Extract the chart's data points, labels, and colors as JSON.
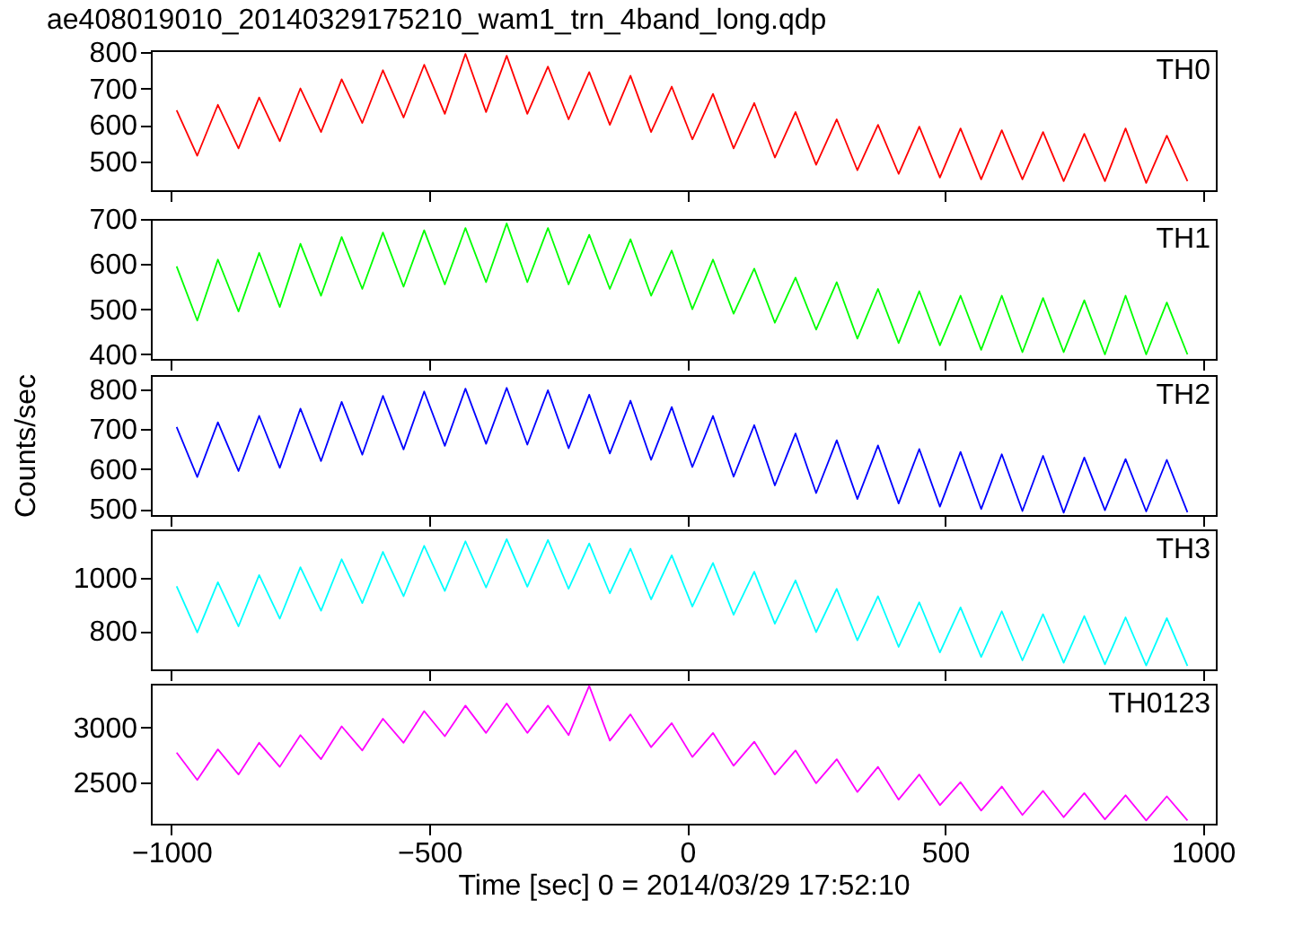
{
  "chart_data": [
    {
      "type": "line",
      "title": "ae408019010_20140329175210_wam1_trn_4band_long.qdp",
      "tick_labels": "y",
      "xlim": [
        -1040,
        1025
      ],
      "xticks": [
        -1000,
        -500,
        0,
        500,
        1000
      ],
      "ylim": [
        420,
        805
      ],
      "yticks": [
        500,
        600,
        700,
        800
      ],
      "x": [
        -990,
        -950,
        -910,
        -870,
        -830,
        -790,
        -750,
        -710,
        -670,
        -630,
        -590,
        -550,
        -510,
        -470,
        -430,
        -390,
        -350,
        -310,
        -270,
        -230,
        -190,
        -150,
        -110,
        -70,
        -30,
        10,
        50,
        90,
        130,
        170,
        210,
        250,
        290,
        330,
        370,
        410,
        450,
        490,
        530,
        570,
        610,
        650,
        690,
        730,
        770,
        810,
        850,
        890,
        930,
        970
      ],
      "series": [
        {
          "name": "TH0",
          "color": "#ff0000",
          "values": [
            640,
            515,
            655,
            535,
            675,
            555,
            700,
            580,
            725,
            605,
            750,
            620,
            765,
            630,
            795,
            635,
            790,
            630,
            760,
            615,
            745,
            600,
            735,
            580,
            705,
            560,
            685,
            535,
            660,
            510,
            635,
            490,
            615,
            475,
            600,
            465,
            595,
            455,
            590,
            450,
            585,
            450,
            580,
            445,
            575,
            445,
            590,
            440,
            570,
            445
          ]
        }
      ]
    },
    {
      "type": "line",
      "tick_labels": "y",
      "xlim": [
        -1040,
        1025
      ],
      "xticks": [
        -1000,
        -500,
        0,
        500,
        1000
      ],
      "ylim": [
        390,
        700
      ],
      "yticks": [
        400,
        500,
        600,
        700
      ],
      "x": [
        -990,
        -950,
        -910,
        -870,
        -830,
        -790,
        -750,
        -710,
        -670,
        -630,
        -590,
        -550,
        -510,
        -470,
        -430,
        -390,
        -350,
        -310,
        -270,
        -230,
        -190,
        -150,
        -110,
        -70,
        -30,
        10,
        50,
        90,
        130,
        170,
        210,
        250,
        290,
        330,
        370,
        410,
        450,
        490,
        530,
        570,
        610,
        650,
        690,
        730,
        770,
        810,
        850,
        890,
        930,
        970
      ],
      "series": [
        {
          "name": "TH1",
          "color": "#00ff00",
          "values": [
            595,
            475,
            610,
            495,
            625,
            505,
            645,
            530,
            660,
            545,
            670,
            550,
            675,
            555,
            680,
            560,
            690,
            560,
            680,
            555,
            665,
            545,
            655,
            530,
            630,
            500,
            610,
            490,
            590,
            470,
            570,
            455,
            560,
            435,
            545,
            425,
            540,
            420,
            530,
            410,
            530,
            405,
            525,
            405,
            520,
            400,
            530,
            400,
            515,
            400
          ]
        }
      ]
    },
    {
      "type": "line",
      "tick_labels": "y",
      "ylabel": "Counts/sec",
      "xlim": [
        -1040,
        1025
      ],
      "xticks": [
        -1000,
        -500,
        0,
        500,
        1000
      ],
      "ylim": [
        485,
        835
      ],
      "yticks": [
        500,
        600,
        700,
        800
      ],
      "x": [
        -990,
        -950,
        -910,
        -870,
        -830,
        -790,
        -750,
        -710,
        -670,
        -630,
        -590,
        -550,
        -510,
        -470,
        -430,
        -390,
        -350,
        -310,
        -270,
        -230,
        -190,
        -150,
        -110,
        -70,
        -30,
        10,
        50,
        90,
        130,
        170,
        210,
        250,
        290,
        330,
        370,
        410,
        450,
        490,
        530,
        570,
        610,
        650,
        690,
        730,
        770,
        810,
        850,
        890,
        930,
        970
      ],
      "series": [
        {
          "name": "TH2",
          "color": "#0000ff",
          "values": [
            705,
            580,
            717,
            595,
            733,
            603,
            751,
            620,
            768,
            636,
            783,
            649,
            794,
            658,
            801,
            663,
            803,
            661,
            797,
            652,
            786,
            639,
            771,
            623,
            755,
            605,
            733,
            581,
            710,
            559,
            689,
            540,
            672,
            525,
            659,
            514,
            650,
            506,
            643,
            500,
            637,
            495,
            633,
            491,
            629,
            497,
            625,
            494,
            623,
            492
          ]
        }
      ]
    },
    {
      "type": "line",
      "tick_labels": "y",
      "xlim": [
        -1040,
        1025
      ],
      "xticks": [
        -1000,
        -500,
        0,
        500,
        1000
      ],
      "ylim": [
        655,
        1185
      ],
      "yticks": [
        800,
        1000
      ],
      "x": [
        -990,
        -950,
        -910,
        -870,
        -830,
        -790,
        -750,
        -710,
        -670,
        -630,
        -590,
        -550,
        -510,
        -470,
        -430,
        -390,
        -350,
        -310,
        -270,
        -230,
        -190,
        -150,
        -110,
        -70,
        -30,
        10,
        50,
        90,
        130,
        170,
        210,
        250,
        290,
        330,
        370,
        410,
        450,
        490,
        530,
        570,
        610,
        650,
        690,
        730,
        770,
        810,
        850,
        890,
        930,
        970
      ],
      "series": [
        {
          "name": "TH3",
          "color": "#00ffff",
          "values": [
            970,
            795,
            985,
            818,
            1012,
            847,
            1042,
            877,
            1072,
            906,
            1100,
            932,
            1123,
            952,
            1140,
            965,
            1148,
            968,
            1145,
            960,
            1132,
            943,
            1112,
            920,
            1087,
            893,
            1058,
            862,
            1025,
            828,
            992,
            796,
            960,
            765,
            932,
            740,
            909,
            719,
            890,
            702,
            875,
            689,
            864,
            680,
            857,
            674,
            852,
            670,
            849,
            668
          ]
        }
      ]
    },
    {
      "type": "line",
      "xlabel": "Time [sec] 0 = 2014/03/29 17:52:10",
      "xlim": [
        -1040,
        1025
      ],
      "xticks": [
        -1000,
        -500,
        0,
        500,
        1000
      ],
      "ylim": [
        2120,
        3400
      ],
      "yticks": [
        2500,
        3000
      ],
      "x": [
        -990,
        -950,
        -910,
        -870,
        -830,
        -790,
        -750,
        -710,
        -670,
        -630,
        -590,
        -550,
        -510,
        -470,
        -430,
        -390,
        -350,
        -310,
        -270,
        -230,
        -190,
        -150,
        -110,
        -70,
        -30,
        10,
        50,
        90,
        130,
        170,
        210,
        250,
        290,
        330,
        370,
        410,
        450,
        490,
        530,
        570,
        610,
        650,
        690,
        730,
        770,
        810,
        850,
        890,
        930,
        970
      ],
      "series": [
        {
          "name": "TH0123",
          "color": "#ff00ff",
          "values": [
            2770,
            2520,
            2800,
            2570,
            2860,
            2640,
            2930,
            2710,
            3010,
            2790,
            3080,
            2860,
            3150,
            2920,
            3200,
            2950,
            3220,
            2950,
            3200,
            2930,
            3380,
            2880,
            3120,
            2820,
            3040,
            2730,
            2950,
            2650,
            2870,
            2570,
            2790,
            2490,
            2710,
            2410,
            2640,
            2340,
            2570,
            2290,
            2500,
            2240,
            2460,
            2200,
            2420,
            2180,
            2400,
            2160,
            2380,
            2150,
            2370,
            2150
          ]
        }
      ]
    }
  ]
}
